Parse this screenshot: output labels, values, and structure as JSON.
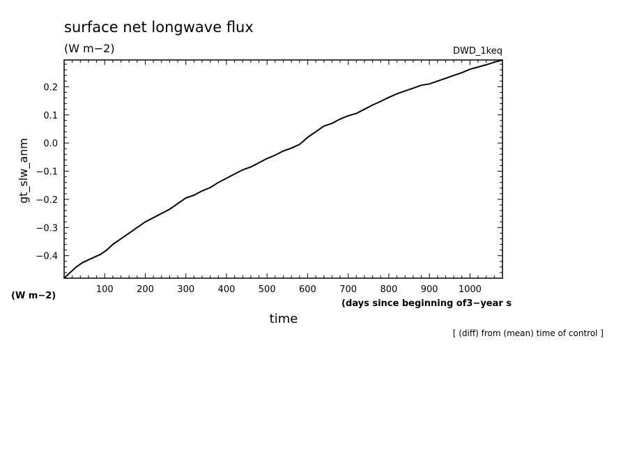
{
  "chart_data": {
    "type": "line",
    "title": "surface net longwave flux",
    "subtitle": "(W m−2)",
    "run_label": "DWD_1keq",
    "ylabel": "gt_slw_anm",
    "y_unit": "(W m−2)",
    "xlabel": "time",
    "x_unit": "(days since beginning of3−year s",
    "footnote": "[ (diff) from (mean) time of control ]",
    "xlim": [
      0,
      1080
    ],
    "ylim": [
      -0.48,
      0.295
    ],
    "x_ticks": [
      100,
      200,
      300,
      400,
      500,
      600,
      700,
      800,
      900,
      1000
    ],
    "y_ticks": [
      -0.4,
      -0.3,
      -0.2,
      -0.1,
      0.0,
      0.1,
      0.2
    ],
    "y_tick_labels": [
      "−0.4",
      "−0.3",
      "−0.2",
      "−0.1",
      "0.0",
      "0.1",
      "0.2"
    ],
    "grid": false,
    "series": [
      {
        "x": [
          0,
          15,
          30,
          45,
          60,
          75,
          90,
          105,
          120,
          135,
          150,
          165,
          180,
          200,
          220,
          240,
          260,
          280,
          300,
          320,
          340,
          360,
          380,
          400,
          420,
          440,
          460,
          480,
          500,
          520,
          540,
          560,
          580,
          600,
          620,
          640,
          660,
          680,
          700,
          720,
          740,
          760,
          780,
          800,
          820,
          840,
          860,
          880,
          900,
          920,
          940,
          960,
          980,
          1000,
          1020,
          1040,
          1060,
          1080
        ],
        "y": [
          -0.48,
          -0.46,
          -0.44,
          -0.425,
          -0.415,
          -0.405,
          -0.395,
          -0.38,
          -0.36,
          -0.345,
          -0.33,
          -0.315,
          -0.3,
          -0.28,
          -0.265,
          -0.25,
          -0.235,
          -0.215,
          -0.195,
          -0.185,
          -0.17,
          -0.158,
          -0.14,
          -0.125,
          -0.11,
          -0.095,
          -0.085,
          -0.07,
          -0.055,
          -0.043,
          -0.028,
          -0.018,
          -0.005,
          0.02,
          0.04,
          0.06,
          0.07,
          0.085,
          0.097,
          0.105,
          0.12,
          0.135,
          0.148,
          0.162,
          0.175,
          0.185,
          0.195,
          0.205,
          0.21,
          0.22,
          0.23,
          0.24,
          0.25,
          0.262,
          0.27,
          0.278,
          0.287,
          0.295
        ]
      }
    ]
  }
}
